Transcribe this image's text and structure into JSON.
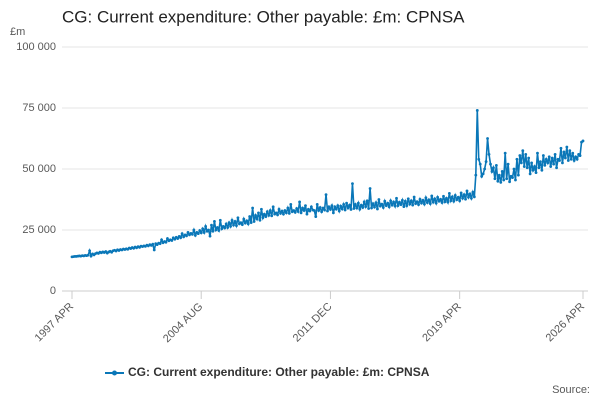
{
  "chart_data": {
    "type": "line",
    "title": "CG: Current expenditure: Other payable: £m: CPNSA",
    "y_label": "£m",
    "source": "Source:",
    "categories": [
      "1997 APR",
      null,
      null,
      null,
      null,
      null,
      null,
      null,
      null,
      null,
      null,
      null,
      null,
      null,
      null,
      null,
      null,
      null,
      null,
      null,
      null,
      null,
      null,
      null,
      null,
      null,
      null,
      null,
      null,
      null,
      null,
      null,
      null,
      null,
      null,
      null,
      null,
      null,
      null,
      null,
      null,
      null,
      null,
      null,
      null,
      null,
      null,
      null,
      null,
      null,
      null,
      null,
      null,
      null,
      null,
      null,
      null,
      null,
      null,
      null,
      null,
      null,
      null,
      null,
      null,
      null,
      null,
      null,
      null,
      null,
      null,
      null,
      null,
      null,
      null,
      null,
      null,
      null,
      null,
      null,
      null,
      null,
      null,
      null,
      null,
      null,
      null,
      null,
      "2004 AUG",
      null,
      null,
      null,
      null,
      null,
      null,
      null,
      null,
      null,
      null,
      null,
      null,
      null,
      null,
      null,
      null,
      null,
      null,
      null,
      null,
      null,
      null,
      null,
      null,
      null,
      null,
      null,
      null,
      null,
      null,
      null,
      null,
      null,
      null,
      null,
      null,
      null,
      null,
      null,
      null,
      null,
      null,
      null,
      null,
      null,
      null,
      null,
      null,
      null,
      null,
      null,
      null,
      null,
      null,
      null,
      null,
      null,
      null,
      null,
      null,
      null,
      null,
      null,
      null,
      null,
      null,
      null,
      null,
      null,
      null,
      null,
      null,
      null,
      null,
      null,
      null,
      null,
      null,
      null,
      null,
      null,
      null,
      null,
      null,
      null,
      null,
      null,
      "2011 DEC",
      null,
      null,
      null,
      null,
      null,
      null,
      null,
      null,
      null,
      null,
      null,
      null,
      null,
      null,
      null,
      null,
      null,
      null,
      null,
      null,
      null,
      null,
      null,
      null,
      null,
      null,
      null,
      null,
      null,
      null,
      null,
      null,
      null,
      null,
      null,
      null,
      null,
      null,
      null,
      null,
      null,
      null,
      null,
      null,
      null,
      null,
      null,
      null,
      null,
      null,
      null,
      null,
      null,
      null,
      null,
      null,
      null,
      null,
      null,
      null,
      null,
      null,
      null,
      null,
      null,
      null,
      null,
      null,
      null,
      null,
      null,
      null,
      null,
      null,
      null,
      null,
      null,
      null,
      null,
      null,
      null,
      null,
      null,
      null,
      null,
      null,
      null,
      "2019 APR",
      null,
      null,
      null,
      null,
      null,
      null,
      null,
      null,
      null,
      null,
      null,
      null,
      null,
      null,
      null,
      null,
      null,
      null,
      null,
      null,
      null,
      null,
      null,
      null,
      null,
      null,
      null,
      null,
      null,
      null,
      null,
      null,
      null,
      null,
      null,
      null,
      null,
      null,
      null,
      null,
      null,
      null,
      null,
      null,
      null,
      null,
      null,
      null,
      null,
      null,
      null,
      null,
      null,
      null,
      null,
      null,
      null,
      null,
      null,
      null,
      null,
      null,
      null,
      null,
      null,
      null,
      null,
      null,
      null,
      null,
      null,
      null,
      null,
      null,
      null,
      null,
      null,
      null,
      null,
      null,
      null,
      null,
      null,
      "2026 APR"
    ],
    "series": [
      {
        "name": "CG: Current expenditure: Other payable: £m: CPNSA",
        "color": "#0a77b8",
        "values": [
          14000,
          14100,
          14200,
          14200,
          14300,
          14400,
          14300,
          14500,
          14400,
          14600,
          14500,
          14700,
          16500,
          14300,
          15200,
          14800,
          15300,
          15600,
          15400,
          15900,
          15700,
          16000,
          15800,
          16200,
          15500,
          16000,
          16300,
          15900,
          16500,
          16700,
          16400,
          16900,
          16600,
          17000,
          16800,
          17200,
          17000,
          17300,
          17100,
          17600,
          17400,
          17800,
          17500,
          18000,
          17700,
          18200,
          17900,
          18400,
          18200,
          18500,
          18300,
          18800,
          18500,
          19000,
          18700,
          19200,
          16800,
          19400,
          19000,
          19600,
          19400,
          21000,
          19800,
          20300,
          20000,
          21500,
          20600,
          21000,
          20700,
          21800,
          21200,
          22000,
          21500,
          22400,
          21800,
          23500,
          22200,
          23000,
          22600,
          24000,
          23000,
          23600,
          23200,
          25000,
          22800,
          24000,
          23500,
          24800,
          23800,
          25500,
          24000,
          26500,
          24500,
          25000,
          22500,
          27000,
          24500,
          28500,
          25000,
          26000,
          24800,
          29000,
          25500,
          26500,
          25800,
          27500,
          26000,
          28000,
          26500,
          29000,
          27000,
          28500,
          26800,
          30000,
          27500,
          28000,
          27200,
          29500,
          27800,
          28800,
          27500,
          30500,
          28000,
          34000,
          28500,
          31000,
          29500,
          32000,
          29000,
          33500,
          30000,
          31500,
          30500,
          32500,
          31000,
          33000,
          30800,
          34500,
          31500,
          32000,
          31200,
          33500,
          31800,
          32800,
          31500,
          33000,
          32000,
          34000,
          31800,
          35500,
          32500,
          33000,
          32200,
          33800,
          32600,
          36500,
          32000,
          34000,
          33000,
          35000,
          31500,
          33500,
          32800,
          34500,
          33200,
          33000,
          30500,
          35500,
          33000,
          34200,
          32500,
          34000,
          33200,
          39500,
          32800,
          34500,
          33400,
          35000,
          32000,
          34500,
          33500,
          35000,
          32800,
          34800,
          33600,
          35500,
          33200,
          36000,
          34000,
          35200,
          33400,
          44000,
          33800,
          35500,
          34000,
          36000,
          33500,
          35200,
          34200,
          36500,
          34600,
          37000,
          33800,
          42000,
          34000,
          35800,
          34400,
          36200,
          33600,
          37500,
          34800,
          35600,
          34200,
          36800,
          35000,
          36000,
          34500,
          37000,
          35200,
          36500,
          34800,
          38000,
          35000,
          36400,
          35400,
          37200,
          34600,
          36800,
          35000,
          37800,
          35600,
          37000,
          35200,
          38500,
          35800,
          36600,
          35400,
          37600,
          36000,
          37200,
          35600,
          38200,
          36200,
          37400,
          35800,
          39000,
          36400,
          37800,
          36000,
          38400,
          36800,
          37600,
          36200,
          38800,
          36600,
          38000,
          36400,
          40000,
          37000,
          38600,
          36800,
          39200,
          37400,
          38400,
          37000,
          40200,
          38000,
          39500,
          37600,
          41000,
          38400,
          39800,
          38000,
          40500,
          38600,
          47500,
          74000,
          54000,
          52000,
          47000,
          48000,
          50000,
          53000,
          62500,
          56000,
          52000,
          49000,
          50500,
          46000,
          51500,
          45000,
          47500,
          44500,
          49000,
          45500,
          56500,
          46000,
          52000,
          44800,
          47000,
          46500,
          50000,
          45500,
          54000,
          47500,
          55500,
          52500,
          57500,
          51000,
          56000,
          50500,
          54500,
          48000,
          52500,
          49500,
          51000,
          48500,
          56500,
          50500,
          53000,
          49500,
          55500,
          51500,
          54000,
          52500,
          55000,
          51000,
          54500,
          52000,
          56000,
          50500,
          54000,
          53500,
          58500,
          52500,
          57000,
          54500,
          59000,
          53500,
          57500,
          54000,
          56500,
          53500,
          55000,
          54000,
          56000,
          55500,
          61000,
          61500
        ]
      }
    ],
    "ylim": [
      0,
      100000
    ],
    "yticks": [
      0,
      {
        "value": 25000,
        "label": "25 000"
      },
      {
        "value": 50000,
        "label": "50 000"
      },
      {
        "value": 75000,
        "label": "75 000"
      },
      {
        "value": 100000,
        "label": "100 000"
      }
    ],
    "grid": true
  }
}
